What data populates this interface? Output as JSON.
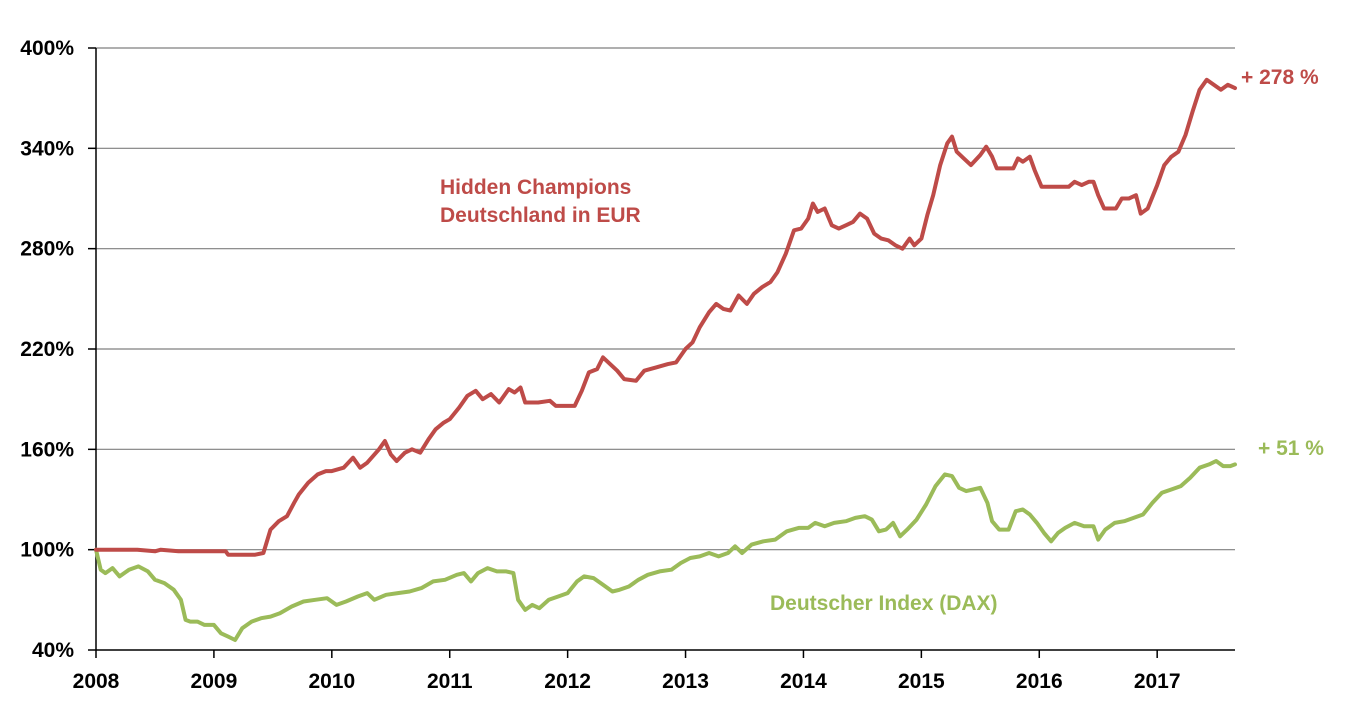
{
  "chart_data": {
    "type": "line",
    "title": "",
    "xlabel": "",
    "ylabel": "",
    "xlim": [
      2008.0,
      2017.66
    ],
    "ylim": [
      40,
      400
    ],
    "y_ticks": [
      "40%",
      "100%",
      "160%",
      "220%",
      "280%",
      "340%",
      "400%"
    ],
    "y_tick_values": [
      40,
      100,
      160,
      220,
      280,
      340,
      400
    ],
    "x_ticks": [
      "2008",
      "2009",
      "2010",
      "2011",
      "2012",
      "2013",
      "2014",
      "2015",
      "2016",
      "2017"
    ],
    "x_tick_values": [
      2008,
      2009,
      2010,
      2011,
      2012,
      2013,
      2014,
      2015,
      2016,
      2017
    ],
    "grid": true,
    "colors": {
      "hidden_champions": "#be4b48",
      "dax": "#9bbb59",
      "grid": "#7f7f7f",
      "axis": "#000000"
    },
    "series": [
      {
        "name": "Hidden Champions Deutschland in EUR",
        "color_key": "hidden_champions",
        "end_label": "+ 278 %",
        "points": [
          [
            2008.0,
            100
          ],
          [
            2008.35,
            100
          ],
          [
            2008.5,
            99
          ],
          [
            2008.55,
            100
          ],
          [
            2008.7,
            99
          ],
          [
            2009.0,
            99
          ],
          [
            2009.1,
            99
          ],
          [
            2009.12,
            97
          ],
          [
            2009.35,
            97
          ],
          [
            2009.42,
            98
          ],
          [
            2009.48,
            112
          ],
          [
            2009.55,
            117
          ],
          [
            2009.62,
            120
          ],
          [
            2009.68,
            128
          ],
          [
            2009.72,
            133
          ],
          [
            2009.8,
            140
          ],
          [
            2009.88,
            145
          ],
          [
            2009.95,
            147
          ],
          [
            2010.0,
            147
          ],
          [
            2010.1,
            149
          ],
          [
            2010.18,
            155
          ],
          [
            2010.24,
            149
          ],
          [
            2010.3,
            152
          ],
          [
            2010.4,
            160
          ],
          [
            2010.45,
            165
          ],
          [
            2010.5,
            157
          ],
          [
            2010.55,
            153
          ],
          [
            2010.62,
            158
          ],
          [
            2010.68,
            160
          ],
          [
            2010.75,
            158
          ],
          [
            2010.82,
            166
          ],
          [
            2010.88,
            172
          ],
          [
            2010.95,
            176
          ],
          [
            2011.0,
            178
          ],
          [
            2011.08,
            185
          ],
          [
            2011.15,
            192
          ],
          [
            2011.22,
            195
          ],
          [
            2011.28,
            190
          ],
          [
            2011.35,
            193
          ],
          [
            2011.42,
            188
          ],
          [
            2011.5,
            196
          ],
          [
            2011.55,
            194
          ],
          [
            2011.6,
            197
          ],
          [
            2011.64,
            188
          ],
          [
            2011.75,
            188
          ],
          [
            2011.85,
            189
          ],
          [
            2011.9,
            186
          ],
          [
            2012.0,
            186
          ],
          [
            2012.06,
            186
          ],
          [
            2012.12,
            195
          ],
          [
            2012.18,
            206
          ],
          [
            2012.25,
            208
          ],
          [
            2012.3,
            215
          ],
          [
            2012.36,
            211
          ],
          [
            2012.42,
            207
          ],
          [
            2012.48,
            202
          ],
          [
            2012.58,
            201
          ],
          [
            2012.65,
            207
          ],
          [
            2012.75,
            209
          ],
          [
            2012.85,
            211
          ],
          [
            2012.92,
            212
          ],
          [
            2013.0,
            220
          ],
          [
            2013.06,
            224
          ],
          [
            2013.12,
            233
          ],
          [
            2013.2,
            242
          ],
          [
            2013.26,
            247
          ],
          [
            2013.32,
            244
          ],
          [
            2013.38,
            243
          ],
          [
            2013.45,
            252
          ],
          [
            2013.52,
            247
          ],
          [
            2013.58,
            253
          ],
          [
            2013.65,
            257
          ],
          [
            2013.72,
            260
          ],
          [
            2013.78,
            266
          ],
          [
            2013.85,
            277
          ],
          [
            2013.92,
            291
          ],
          [
            2013.98,
            292
          ],
          [
            2014.04,
            298
          ],
          [
            2014.08,
            307
          ],
          [
            2014.12,
            302
          ],
          [
            2014.18,
            304
          ],
          [
            2014.24,
            294
          ],
          [
            2014.3,
            292
          ],
          [
            2014.36,
            294
          ],
          [
            2014.42,
            296
          ],
          [
            2014.48,
            301
          ],
          [
            2014.54,
            298
          ],
          [
            2014.6,
            289
          ],
          [
            2014.66,
            286
          ],
          [
            2014.72,
            285
          ],
          [
            2014.78,
            282
          ],
          [
            2014.84,
            280
          ],
          [
            2014.9,
            286
          ],
          [
            2014.94,
            282
          ],
          [
            2015.0,
            286
          ],
          [
            2015.05,
            300
          ],
          [
            2015.1,
            312
          ],
          [
            2015.16,
            330
          ],
          [
            2015.22,
            343
          ],
          [
            2015.26,
            347
          ],
          [
            2015.3,
            338
          ],
          [
            2015.36,
            334
          ],
          [
            2015.42,
            330
          ],
          [
            2015.5,
            336
          ],
          [
            2015.55,
            341
          ],
          [
            2015.6,
            335
          ],
          [
            2015.64,
            328
          ],
          [
            2015.7,
            328
          ],
          [
            2015.78,
            328
          ],
          [
            2015.82,
            334
          ],
          [
            2015.86,
            332
          ],
          [
            2015.92,
            335
          ],
          [
            2015.96,
            327
          ],
          [
            2016.02,
            317
          ],
          [
            2016.1,
            317
          ],
          [
            2016.25,
            317
          ],
          [
            2016.3,
            320
          ],
          [
            2016.36,
            318
          ],
          [
            2016.42,
            320
          ],
          [
            2016.46,
            320
          ],
          [
            2016.5,
            312
          ],
          [
            2016.55,
            304
          ],
          [
            2016.65,
            304
          ],
          [
            2016.7,
            310
          ],
          [
            2016.76,
            310
          ],
          [
            2016.82,
            312
          ],
          [
            2016.86,
            301
          ],
          [
            2016.92,
            304
          ],
          [
            2017.0,
            318
          ],
          [
            2017.06,
            330
          ],
          [
            2017.12,
            335
          ],
          [
            2017.18,
            338
          ],
          [
            2017.24,
            348
          ],
          [
            2017.3,
            362
          ],
          [
            2017.36,
            375
          ],
          [
            2017.42,
            381
          ],
          [
            2017.48,
            378
          ],
          [
            2017.54,
            375
          ],
          [
            2017.6,
            378
          ],
          [
            2017.66,
            376
          ]
        ]
      },
      {
        "name": "Deutscher Index (DAX)",
        "color_key": "dax",
        "end_label": "+ 51 %",
        "points": [
          [
            2008.0,
            100
          ],
          [
            2008.04,
            88
          ],
          [
            2008.08,
            86
          ],
          [
            2008.14,
            89
          ],
          [
            2008.2,
            84
          ],
          [
            2008.28,
            88
          ],
          [
            2008.36,
            90
          ],
          [
            2008.44,
            87
          ],
          [
            2008.5,
            82
          ],
          [
            2008.58,
            80
          ],
          [
            2008.66,
            76
          ],
          [
            2008.72,
            70
          ],
          [
            2008.76,
            58
          ],
          [
            2008.8,
            57
          ],
          [
            2008.86,
            57
          ],
          [
            2008.92,
            55
          ],
          [
            2009.0,
            55
          ],
          [
            2009.06,
            50
          ],
          [
            2009.12,
            48
          ],
          [
            2009.18,
            46
          ],
          [
            2009.24,
            53
          ],
          [
            2009.32,
            57
          ],
          [
            2009.4,
            59
          ],
          [
            2009.48,
            60
          ],
          [
            2009.56,
            62
          ],
          [
            2009.66,
            66
          ],
          [
            2009.76,
            69
          ],
          [
            2009.86,
            70
          ],
          [
            2009.96,
            71
          ],
          [
            2010.04,
            67
          ],
          [
            2010.12,
            69
          ],
          [
            2010.22,
            72
          ],
          [
            2010.3,
            74
          ],
          [
            2010.36,
            70
          ],
          [
            2010.46,
            73
          ],
          [
            2010.56,
            74
          ],
          [
            2010.66,
            75
          ],
          [
            2010.76,
            77
          ],
          [
            2010.86,
            81
          ],
          [
            2010.96,
            82
          ],
          [
            2011.06,
            85
          ],
          [
            2011.12,
            86
          ],
          [
            2011.18,
            81
          ],
          [
            2011.24,
            86
          ],
          [
            2011.32,
            89
          ],
          [
            2011.4,
            87
          ],
          [
            2011.48,
            87
          ],
          [
            2011.54,
            86
          ],
          [
            2011.58,
            70
          ],
          [
            2011.64,
            64
          ],
          [
            2011.7,
            67
          ],
          [
            2011.76,
            65
          ],
          [
            2011.84,
            70
          ],
          [
            2011.92,
            72
          ],
          [
            2012.0,
            74
          ],
          [
            2012.08,
            81
          ],
          [
            2012.14,
            84
          ],
          [
            2012.22,
            83
          ],
          [
            2012.3,
            79
          ],
          [
            2012.38,
            75
          ],
          [
            2012.44,
            76
          ],
          [
            2012.52,
            78
          ],
          [
            2012.6,
            82
          ],
          [
            2012.68,
            85
          ],
          [
            2012.78,
            87
          ],
          [
            2012.88,
            88
          ],
          [
            2012.96,
            92
          ],
          [
            2013.04,
            95
          ],
          [
            2013.12,
            96
          ],
          [
            2013.2,
            98
          ],
          [
            2013.28,
            96
          ],
          [
            2013.36,
            98
          ],
          [
            2013.42,
            102
          ],
          [
            2013.48,
            98
          ],
          [
            2013.56,
            103
          ],
          [
            2013.66,
            105
          ],
          [
            2013.76,
            106
          ],
          [
            2013.86,
            111
          ],
          [
            2013.96,
            113
          ],
          [
            2014.04,
            113
          ],
          [
            2014.1,
            116
          ],
          [
            2014.18,
            114
          ],
          [
            2014.26,
            116
          ],
          [
            2014.36,
            117
          ],
          [
            2014.44,
            119
          ],
          [
            2014.52,
            120
          ],
          [
            2014.58,
            118
          ],
          [
            2014.64,
            111
          ],
          [
            2014.7,
            112
          ],
          [
            2014.76,
            116
          ],
          [
            2014.82,
            108
          ],
          [
            2014.88,
            112
          ],
          [
            2014.96,
            118
          ],
          [
            2015.04,
            127
          ],
          [
            2015.12,
            138
          ],
          [
            2015.2,
            145
          ],
          [
            2015.26,
            144
          ],
          [
            2015.32,
            137
          ],
          [
            2015.38,
            135
          ],
          [
            2015.44,
            136
          ],
          [
            2015.5,
            137
          ],
          [
            2015.56,
            128
          ],
          [
            2015.6,
            117
          ],
          [
            2015.66,
            112
          ],
          [
            2015.74,
            112
          ],
          [
            2015.8,
            123
          ],
          [
            2015.86,
            124
          ],
          [
            2015.92,
            121
          ],
          [
            2015.98,
            116
          ],
          [
            2016.04,
            110
          ],
          [
            2016.1,
            105
          ],
          [
            2016.16,
            110
          ],
          [
            2016.22,
            113
          ],
          [
            2016.3,
            116
          ],
          [
            2016.38,
            114
          ],
          [
            2016.46,
            114
          ],
          [
            2016.5,
            106
          ],
          [
            2016.56,
            112
          ],
          [
            2016.64,
            116
          ],
          [
            2016.72,
            117
          ],
          [
            2016.8,
            119
          ],
          [
            2016.88,
            121
          ],
          [
            2016.96,
            128
          ],
          [
            2017.04,
            134
          ],
          [
            2017.12,
            136
          ],
          [
            2017.2,
            138
          ],
          [
            2017.28,
            143
          ],
          [
            2017.36,
            149
          ],
          [
            2017.44,
            151
          ],
          [
            2017.5,
            153
          ],
          [
            2017.56,
            150
          ],
          [
            2017.62,
            150
          ],
          [
            2017.66,
            151
          ]
        ]
      }
    ],
    "annotations": [
      {
        "lines": [
          "Hidden Champions",
          "Deutschland in EUR"
        ],
        "color_key": "hidden_champions"
      },
      {
        "lines": [
          "Deutscher Index (DAX)"
        ],
        "color_key": "dax"
      }
    ]
  }
}
